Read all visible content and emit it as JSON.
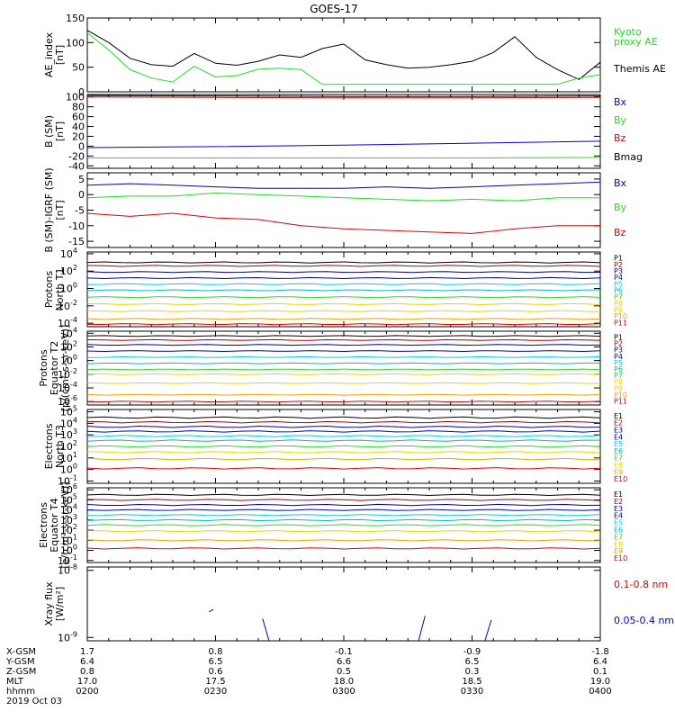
{
  "title": "GOES-17",
  "colors": {
    "black": "#000000",
    "green": "#22dd22",
    "blue": "#0000cc",
    "red": "#dd0000",
    "darkblue": "#000088",
    "cyan": "#00ccee",
    "teal": "#00bbbb",
    "gold": "#f2d000",
    "orange": "#f0a000",
    "darkred": "#aa0000"
  },
  "footer": {
    "rows": [
      {
        "label": "X-GSM",
        "values": [
          "1.7",
          "0.8",
          "-0.1",
          "-0.9",
          "-1.8"
        ]
      },
      {
        "label": "Y-GSM",
        "values": [
          "6.4",
          "6.5",
          "6.6",
          "6.5",
          "6.4"
        ]
      },
      {
        "label": "Z-GSM",
        "values": [
          "0.8",
          "0.6",
          "0.5",
          "0.3",
          "0.1"
        ]
      },
      {
        "label": "MLT",
        "values": [
          "17.0",
          "17.5",
          "18.0",
          "18.5",
          "19.0"
        ]
      },
      {
        "label": "hhmm",
        "values": [
          "0200",
          "0230",
          "0300",
          "0330",
          "0400"
        ]
      }
    ],
    "date": "2019 Oct 03"
  },
  "chart_data": [
    {
      "type": "line",
      "id": "ae",
      "ylabel": [
        "AE_index",
        "[nT]"
      ],
      "ylim": [
        0,
        150
      ],
      "yticks": [
        "0",
        "50",
        "100",
        "150"
      ],
      "x": [
        0,
        5,
        10,
        15,
        20,
        25,
        30,
        35,
        40,
        45,
        50,
        55,
        60,
        65,
        70,
        75,
        80,
        85,
        90,
        95,
        100,
        105,
        110,
        115,
        120
      ],
      "series": [
        {
          "name": "Themis AE",
          "color": "black",
          "values": [
            125,
            100,
            68,
            55,
            52,
            78,
            58,
            54,
            62,
            75,
            70,
            88,
            97,
            65,
            55,
            48,
            50,
            55,
            62,
            80,
            112,
            70,
            45,
            25,
            60
          ]
        },
        {
          "name": "Kyoto proxy AE",
          "color": "green",
          "values": [
            120,
            85,
            45,
            28,
            20,
            52,
            30,
            33,
            46,
            48,
            45,
            15,
            15,
            15,
            15,
            15,
            15,
            15,
            15,
            15,
            15,
            15,
            15,
            28,
            35
          ]
        }
      ],
      "legend": [
        {
          "text": "Kyoto",
          "color": "green"
        },
        {
          "text": "proxy AE",
          "color": "green"
        },
        {
          "text": "Themis AE",
          "color": "black"
        }
      ]
    },
    {
      "type": "line",
      "id": "bsm",
      "ylabel": [
        "B (SM)",
        "[nT]"
      ],
      "ylim": [
        -45,
        105
      ],
      "yticks": [
        "-40",
        "-20",
        "0",
        "20",
        "40",
        "60",
        "80",
        "100"
      ],
      "ytickvals": [
        -40,
        -20,
        0,
        20,
        40,
        60,
        80,
        100
      ],
      "x": [
        0,
        30,
        60,
        90,
        120
      ],
      "series": [
        {
          "name": "Bx",
          "color": "blue",
          "values": [
            -3,
            -1,
            2,
            6,
            10
          ]
        },
        {
          "name": "By",
          "color": "green",
          "values": [
            -24,
            -24,
            -24,
            -24,
            -23
          ]
        },
        {
          "name": "Bz",
          "color": "red",
          "values": [
            100,
            99,
            98,
            98,
            99
          ]
        },
        {
          "name": "Bmag",
          "color": "black",
          "values": [
            103,
            102,
            101,
            101,
            102
          ]
        }
      ],
      "legend": [
        {
          "text": "Bx",
          "color": "blue"
        },
        {
          "text": "By",
          "color": "green"
        },
        {
          "text": "Bz",
          "color": "red"
        },
        {
          "text": "Bmag",
          "color": "black"
        }
      ]
    },
    {
      "type": "line",
      "id": "bigrf",
      "ylabel": [
        "B (SM)-IGRF (SM)",
        "[nT]"
      ],
      "ylim": [
        -17,
        7
      ],
      "yticks": [
        "-15",
        "-10",
        "-5",
        "0",
        "5"
      ],
      "ytickvals": [
        -15,
        -10,
        -5,
        0,
        5
      ],
      "x": [
        0,
        10,
        20,
        30,
        40,
        50,
        60,
        70,
        80,
        90,
        100,
        110,
        120
      ],
      "series": [
        {
          "name": "Bx",
          "color": "blue",
          "values": [
            3,
            3.5,
            3,
            2.5,
            2,
            2,
            2,
            2.5,
            2,
            2.5,
            3,
            3.5,
            4
          ]
        },
        {
          "name": "By",
          "color": "green",
          "values": [
            -1,
            -0.5,
            -0.5,
            0.5,
            0,
            -0.5,
            -1,
            -1.5,
            -2,
            -1.5,
            -2,
            -1,
            -1
          ]
        },
        {
          "name": "Bz",
          "color": "red",
          "values": [
            -6,
            -7,
            -6,
            -7.5,
            -8,
            -10,
            -11,
            -11.5,
            -12,
            -12.5,
            -11,
            -10,
            -10
          ]
        }
      ],
      "legend": [
        {
          "text": "Bx",
          "color": "blue"
        },
        {
          "text": "By",
          "color": "green"
        },
        {
          "text": "Bz",
          "color": "red"
        }
      ]
    },
    {
      "type": "line",
      "id": "p1",
      "log": true,
      "ylabel": [
        "Protons",
        "North T1"
      ],
      "ylim": [
        -4.4,
        4.2
      ],
      "yticks": [
        {
          "b": "10",
          "e": "4",
          "v": 4
        },
        {
          "b": "10",
          "e": "2",
          "v": 2
        },
        {
          "b": "10",
          "e": "0",
          "v": 0
        },
        {
          "b": "10",
          "e": "-2",
          "v": -2
        },
        {
          "b": "10",
          "e": "-4",
          "v": -4
        }
      ],
      "series": [
        {
          "name": "P1",
          "color": "black",
          "level": 3.0
        },
        {
          "name": "P2",
          "color": "darkred",
          "level": 2.6
        },
        {
          "name": "P3",
          "color": "darkblue",
          "level": 1.9
        },
        {
          "name": "P4",
          "color": "blue",
          "level": 1.2
        },
        {
          "name": "P5",
          "color": "cyan",
          "level": 0.5
        },
        {
          "name": "P6",
          "color": "teal",
          "level": -0.2
        },
        {
          "name": "P7",
          "color": "green",
          "level": -1.0
        },
        {
          "name": "P8",
          "color": "gold",
          "level": -1.8
        },
        {
          "name": "P9",
          "color": "gold",
          "level": -2.6
        },
        {
          "name": "P10",
          "color": "orange",
          "level": -3.5
        },
        {
          "name": "P11",
          "color": "red",
          "level": -4.1
        }
      ]
    },
    {
      "type": "line",
      "id": "p2",
      "log": true,
      "ylabel": [
        "Protons",
        "Equator T2",
        "[p/(cm²-s-sr-keV)]"
      ],
      "ylim": [
        -6.5,
        4.3
      ],
      "yticks": [
        {
          "b": "10",
          "e": "4",
          "v": 4
        },
        {
          "b": "10",
          "e": "2",
          "v": 2
        },
        {
          "b": "10",
          "e": "0",
          "v": 0
        },
        {
          "b": "10",
          "e": "-2",
          "v": -2
        },
        {
          "b": "10",
          "e": "-4",
          "v": -4
        },
        {
          "b": "10",
          "e": "-6",
          "v": -6
        }
      ],
      "series": [
        {
          "name": "P1",
          "color": "black",
          "level": 3.6
        },
        {
          "name": "P2",
          "color": "darkred",
          "level": 3.0
        },
        {
          "name": "P3",
          "color": "darkblue",
          "level": 2.3
        },
        {
          "name": "P4",
          "color": "blue",
          "level": 1.4
        },
        {
          "name": "P5",
          "color": "cyan",
          "level": 0.5
        },
        {
          "name": "P6",
          "color": "teal",
          "level": -0.4
        },
        {
          "name": "P7",
          "color": "green",
          "level": -1.3
        },
        {
          "name": "P8",
          "color": "gold",
          "level": -2.0
        },
        {
          "name": "P9",
          "color": "gold",
          "level": -3.3
        },
        {
          "name": "P10",
          "color": "orange",
          "level": -5.0
        },
        {
          "name": "P11",
          "color": "red",
          "level": -6.0
        }
      ]
    },
    {
      "type": "line",
      "id": "e3",
      "log": true,
      "ylabel": [
        "Electrons",
        "North T3"
      ],
      "ylim": [
        -1.2,
        5.2
      ],
      "yticks": [
        {
          "b": "10",
          "e": "5",
          "v": 5
        },
        {
          "b": "10",
          "e": "4",
          "v": 4
        },
        {
          "b": "10",
          "e": "3",
          "v": 3
        },
        {
          "b": "10",
          "e": "2",
          "v": 2
        },
        {
          "b": "10",
          "e": "1",
          "v": 1
        },
        {
          "b": "10",
          "e": "0",
          "v": 0
        },
        {
          "b": "10",
          "e": "-1",
          "v": -1
        }
      ],
      "series": [
        {
          "name": "E1",
          "color": "black",
          "level": 4.5
        },
        {
          "name": "E2",
          "color": "darkred",
          "level": 4.1
        },
        {
          "name": "E3",
          "color": "darkblue",
          "level": 3.7
        },
        {
          "name": "E4",
          "color": "blue",
          "level": 3.3
        },
        {
          "name": "E5",
          "color": "cyan",
          "level": 2.9
        },
        {
          "name": "E6",
          "color": "teal",
          "level": 2.5
        },
        {
          "name": "E7",
          "color": "green",
          "level": 2.0
        },
        {
          "name": "E8",
          "color": "gold",
          "level": 1.5
        },
        {
          "name": "E9",
          "color": "orange",
          "level": 0.9
        },
        {
          "name": "E10",
          "color": "red",
          "level": 0.1
        }
      ]
    },
    {
      "type": "line",
      "id": "e4",
      "log": true,
      "ylabel": [
        "Electrons",
        "Equator T4",
        "[e/(cm²-s-sr-keV)]"
      ],
      "ylim": [
        -1.2,
        6.2
      ],
      "yticks": [
        {
          "b": "10",
          "e": "6",
          "v": 6
        },
        {
          "b": "10",
          "e": "5",
          "v": 5
        },
        {
          "b": "10",
          "e": "4",
          "v": 4
        },
        {
          "b": "10",
          "e": "3",
          "v": 3
        },
        {
          "b": "10",
          "e": "2",
          "v": 2
        },
        {
          "b": "10",
          "e": "1",
          "v": 1
        },
        {
          "b": "10",
          "e": "0",
          "v": 0
        },
        {
          "b": "10",
          "e": "-1",
          "v": -1
        }
      ],
      "series": [
        {
          "name": "E1",
          "color": "black",
          "level": 5.5
        },
        {
          "name": "E2",
          "color": "darkred",
          "level": 5.0
        },
        {
          "name": "E3",
          "color": "darkblue",
          "level": 4.5
        },
        {
          "name": "E4",
          "color": "blue",
          "level": 4.0
        },
        {
          "name": "E5",
          "color": "cyan",
          "level": 3.5
        },
        {
          "name": "E6",
          "color": "teal",
          "level": 3.0
        },
        {
          "name": "E7",
          "color": "green",
          "level": 2.5
        },
        {
          "name": "E8",
          "color": "gold",
          "level": 1.9
        },
        {
          "name": "E9",
          "color": "orange",
          "level": 1.0
        },
        {
          "name": "E10",
          "color": "red",
          "level": 0.2
        }
      ]
    },
    {
      "type": "line",
      "id": "xray",
      "log": true,
      "ylabel": [
        "Xray flux",
        "[W/m²]"
      ],
      "ylim": [
        -9.05,
        -7.95
      ],
      "yticks": [
        {
          "b": "10",
          "e": "-8",
          "v": -8
        },
        {
          "b": "10",
          "e": "-9",
          "v": -9
        }
      ],
      "series": [
        {
          "name": "0.05-0.4 nm",
          "color": "blue",
          "segments": [
            [
              [
                28.5,
                -8.62
              ],
              [
                29.5,
                -8.58
              ]
            ],
            [
              [
                41.0,
                -8.72
              ],
              [
                42.5,
                -9.05
              ]
            ],
            [
              [
                77.5,
                -9.05
              ],
              [
                79.0,
                -8.68
              ]
            ],
            [
              [
                93.0,
                -9.05
              ],
              [
                94.5,
                -8.74
              ]
            ]
          ]
        },
        {
          "name": "0.1-0.8 nm",
          "color": "red",
          "segments": []
        }
      ],
      "legend": [
        {
          "text": "0.1-0.8 nm",
          "color": "red"
        },
        {
          "text": "0.05-0.4 nm",
          "color": "blue"
        }
      ]
    }
  ]
}
